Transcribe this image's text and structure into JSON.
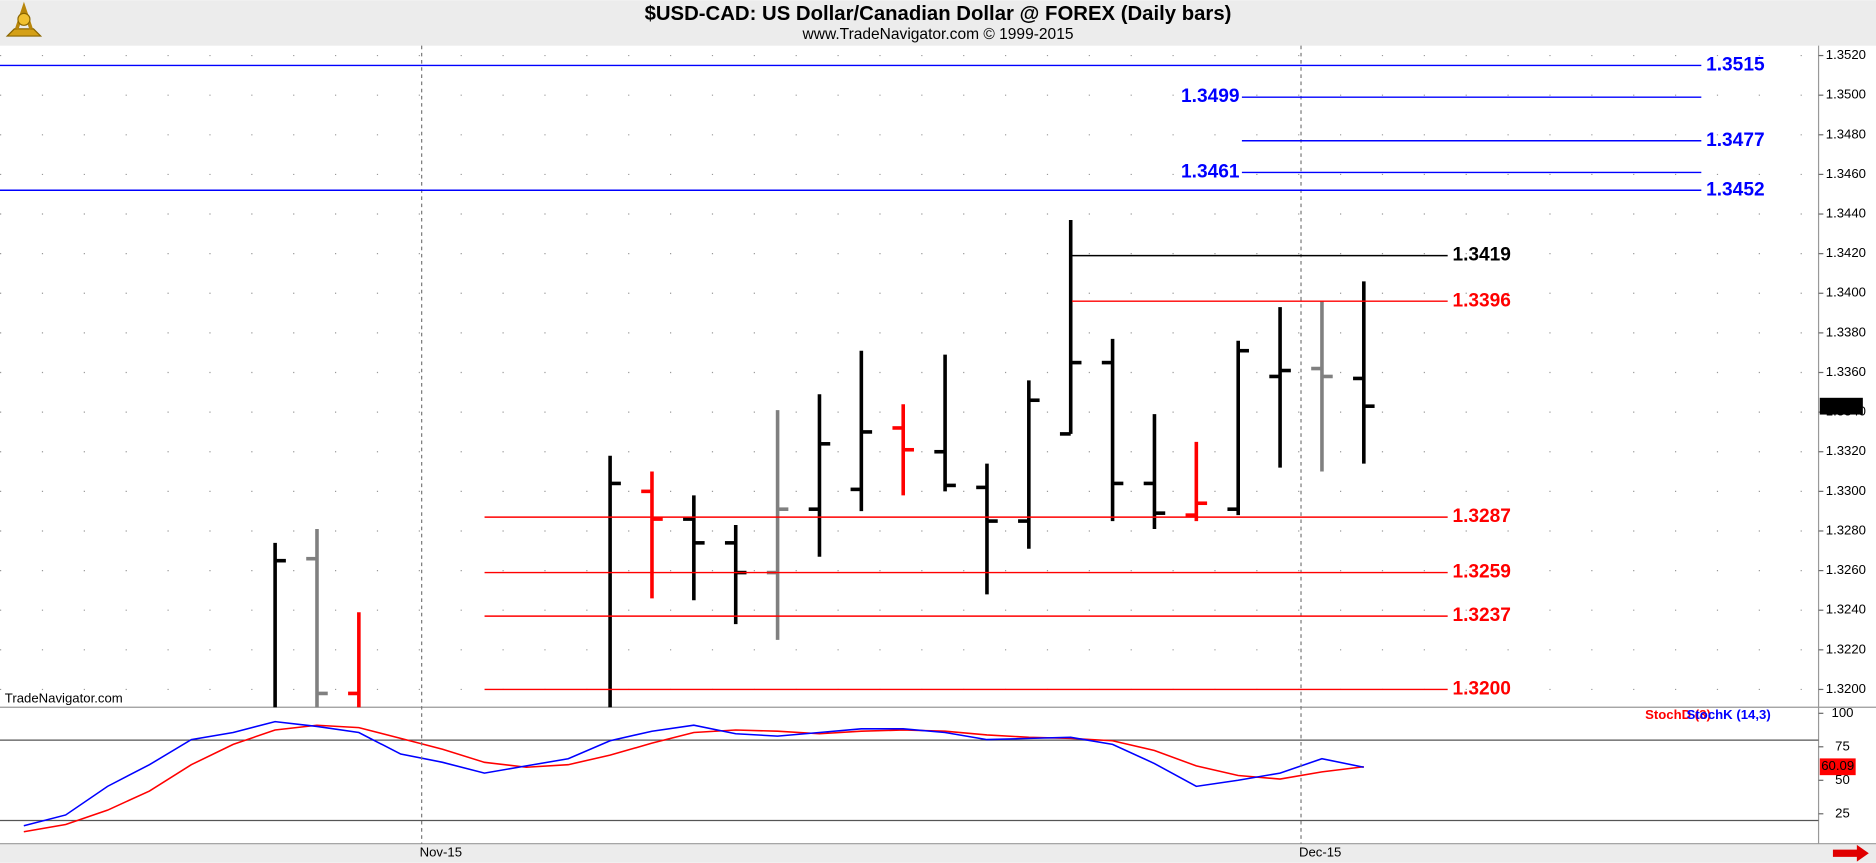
{
  "header": {
    "title": "$USD-CAD:  US Dollar/Canadian Dollar @ FOREX  (Daily bars)",
    "subtitle": "www.TradeNavigator.com © 1999-2015"
  },
  "watermark": "TradeNavigator.com",
  "chart_data": [
    {
      "type": "ohlc",
      "x": [
        2,
        3,
        4,
        10,
        11,
        12,
        13,
        14,
        15,
        16,
        17,
        18,
        19,
        20,
        21,
        22,
        23,
        24,
        25,
        26,
        27,
        28
      ],
      "open": [
        null,
        1.3266,
        1.3198,
        null,
        1.33,
        1.3286,
        1.3274,
        1.3259,
        1.3291,
        1.3301,
        1.3332,
        1.332,
        1.3302,
        1.3285,
        1.3329,
        1.3365,
        1.3304,
        1.3288,
        1.3291,
        1.3358,
        1.3362,
        1.3357
      ],
      "high": [
        1.3274,
        1.3281,
        1.3239,
        1.3318,
        1.331,
        1.3298,
        1.3283,
        1.3341,
        1.3349,
        1.3371,
        1.3344,
        1.3369,
        1.3314,
        1.3356,
        1.3437,
        1.3377,
        1.3339,
        1.3325,
        1.3376,
        1.3393,
        1.3396,
        1.3406
      ],
      "low": [
        null,
        null,
        null,
        null,
        1.3246,
        1.3245,
        1.3233,
        1.3225,
        1.3267,
        1.329,
        1.3298,
        1.33,
        1.3248,
        1.3271,
        1.3329,
        1.3285,
        1.3281,
        1.3285,
        1.3288,
        1.3312,
        1.331,
        1.3314
      ],
      "close": [
        1.3265,
        1.3198,
        null,
        1.3304,
        1.3286,
        1.3274,
        1.3259,
        1.3291,
        1.3324,
        1.333,
        1.3321,
        1.3303,
        1.3285,
        1.3346,
        1.3365,
        1.3304,
        1.3289,
        1.3294,
        1.3371,
        1.3361,
        1.3358,
        1.3343
      ],
      "colors": [
        "#000000",
        "#808080",
        "#ff0000",
        "#000000",
        "#ff0000",
        "#000000",
        "#000000",
        "#808080",
        "#000000",
        "#000000",
        "#ff0000",
        "#000000",
        "#000000",
        "#000000",
        "#000000",
        "#000000",
        "#000000",
        "#ff0000",
        "#000000",
        "#000000",
        "#808080",
        "#000000"
      ],
      "xlim": [
        -4.57,
        38.86
      ],
      "xticks": [
        {
          "value": 5.5,
          "label": "Nov-15"
        },
        {
          "value": 26.5,
          "label": "Dec-15"
        }
      ],
      "ylim": [
        1.3191,
        1.3525
      ],
      "yticks": [
        {
          "value": 1.32,
          "label": "1.3200"
        },
        {
          "value": 1.322,
          "label": "1.3220"
        },
        {
          "value": 1.324,
          "label": "1.3240"
        },
        {
          "value": 1.326,
          "label": "1.3260"
        },
        {
          "value": 1.328,
          "label": "1.3280"
        },
        {
          "value": 1.33,
          "label": "1.3300"
        },
        {
          "value": 1.332,
          "label": "1.3320"
        },
        {
          "value": 1.334,
          "label": "1.3340"
        },
        {
          "value": 1.336,
          "label": "1.3360"
        },
        {
          "value": 1.338,
          "label": "1.3380"
        },
        {
          "value": 1.34,
          "label": "1.3400"
        },
        {
          "value": 1.342,
          "label": "1.3420"
        },
        {
          "value": 1.344,
          "label": "1.3440"
        },
        {
          "value": 1.346,
          "label": "1.3460"
        },
        {
          "value": 1.348,
          "label": "1.3480"
        },
        {
          "value": 1.35,
          "label": "1.3500"
        },
        {
          "value": 1.352,
          "label": "1.3520"
        }
      ],
      "grid": true,
      "levels": [
        {
          "value": 1.3515,
          "color": "#0000ff"
        },
        {
          "value": 1.3499,
          "color": "#0000ff"
        },
        {
          "value": 1.3477,
          "color": "#0000ff"
        },
        {
          "value": 1.3461,
          "color": "#0000ff"
        },
        {
          "value": 1.3452,
          "color": "#0000ff"
        },
        {
          "value": 1.3419,
          "color": "#000000"
        },
        {
          "value": 1.3396,
          "color": "#ff0000"
        },
        {
          "value": 1.3287,
          "color": "#ff0000"
        },
        {
          "value": 1.3259,
          "color": "#ff0000"
        },
        {
          "value": 1.3237,
          "color": "#ff0000"
        },
        {
          "value": 1.32,
          "label": "1.3200",
          "color": "#ff0000"
        }
      ]
    },
    {
      "type": "line",
      "x": [
        -4,
        -3,
        -2,
        -1,
        0,
        1,
        2,
        3,
        4,
        5,
        6,
        7,
        8,
        9,
        10,
        11,
        12,
        13,
        14,
        15,
        16,
        17,
        18,
        19,
        20,
        21,
        22,
        23,
        24,
        25,
        26,
        27,
        28
      ],
      "series": [
        {
          "name": "StochD (3)",
          "color": "#ff0000",
          "values": [
            11.6,
            17.0,
            27.7,
            42.0,
            61.6,
            76.8,
            87.5,
            91.1,
            89.3,
            81.3,
            73.2,
            63.4,
            59.8,
            61.6,
            68.8,
            77.7,
            85.7,
            87.5,
            86.6,
            84.8,
            86.6,
            87.5,
            86.6,
            83.9,
            82.1,
            81.3,
            79.5,
            72.3,
            60.7,
            53.6,
            50.9,
            56.3,
            60.09
          ]
        },
        {
          "name": "StochK (14,3)",
          "color": "#0000ff",
          "values": [
            16.1,
            24.1,
            45.5,
            61.6,
            80.4,
            85.7,
            93.8,
            90.2,
            85.7,
            69.6,
            63.4,
            55.4,
            60.7,
            66.1,
            79.5,
            86.6,
            91.1,
            84.8,
            83.0,
            85.7,
            88.4,
            88.4,
            85.7,
            80.4,
            81.3,
            82.1,
            76.8,
            62.5,
            45.5,
            50.0,
            55.4,
            66.1,
            59.8
          ]
        }
      ],
      "xlim": [
        -4.57,
        38.86
      ],
      "ylim": [
        2.7,
        104.5
      ],
      "yticks": [
        25,
        50,
        75,
        100
      ],
      "reference_lines": [
        20,
        80
      ]
    }
  ]
}
